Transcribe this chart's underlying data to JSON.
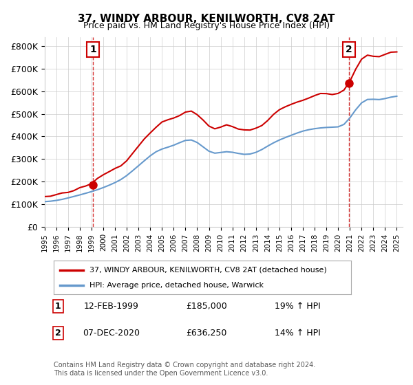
{
  "title": "37, WINDY ARBOUR, KENILWORTH, CV8 2AT",
  "subtitle": "Price paid vs. HM Land Registry's House Price Index (HPI)",
  "legend_line1": "37, WINDY ARBOUR, KENILWORTH, CV8 2AT (detached house)",
  "legend_line2": "HPI: Average price, detached house, Warwick",
  "annotation1_label": "1",
  "annotation1_date": "12-FEB-1999",
  "annotation1_price": "£185,000",
  "annotation1_hpi": "19% ↑ HPI",
  "annotation2_label": "2",
  "annotation2_date": "07-DEC-2020",
  "annotation2_price": "£636,250",
  "annotation2_hpi": "14% ↑ HPI",
  "footer": "Contains HM Land Registry data © Crown copyright and database right 2024.\nThis data is licensed under the Open Government Licence v3.0.",
  "sale1_year": 1999.12,
  "sale1_value": 185000,
  "sale2_year": 2020.92,
  "sale2_value": 636250,
  "ylim_min": 0,
  "ylim_max": 840000,
  "xlim_min": 1995.0,
  "xlim_max": 2025.5,
  "red_color": "#cc0000",
  "blue_color": "#6699cc",
  "bg_color": "#ffffff",
  "grid_color": "#cccccc"
}
